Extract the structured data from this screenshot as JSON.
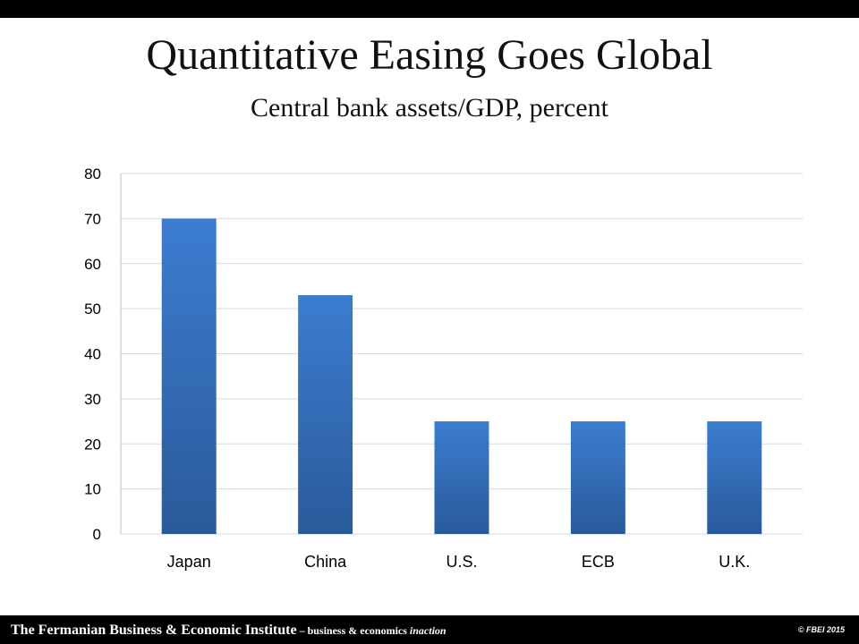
{
  "slide": {
    "title": "Quantitative Easing Goes Global",
    "subtitle": "Central bank assets/GDP, percent"
  },
  "chart_data": {
    "type": "bar",
    "title": "",
    "xlabel": "",
    "ylabel": "",
    "categories": [
      "Japan",
      "China",
      "U.S.",
      "ECB",
      "U.K."
    ],
    "values": [
      70,
      53,
      25,
      25,
      25
    ],
    "ylim": [
      0,
      80
    ],
    "yticks": [
      0,
      10,
      20,
      30,
      40,
      50,
      60,
      70,
      80
    ],
    "grid": true,
    "legend": "none",
    "bar_color_top": "#3c7dd0",
    "bar_color_bottom": "#2a5a9a"
  },
  "footer": {
    "institute": "The Fermanian Business & Economic Institute",
    "tagline": " – business & economics ",
    "tagline_em": "inaction",
    "copyright": "© FBEI 2015"
  }
}
